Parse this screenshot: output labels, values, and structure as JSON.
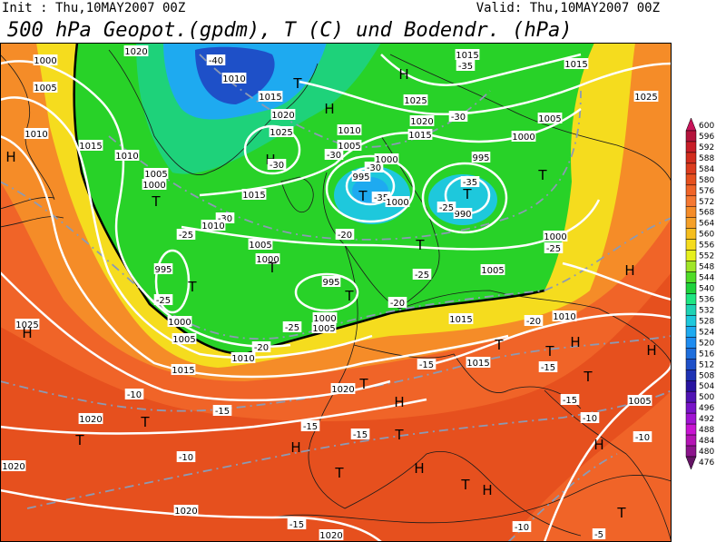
{
  "header": {
    "init": "Init : Thu,10MAY2007 00Z",
    "valid": "Valid: Thu,10MAY2007 00Z",
    "title": "500 hPa Geopot.(gpdm), T (C) und Bodendr. (hPa)"
  },
  "colorbar": {
    "levels": [
      600,
      596,
      592,
      588,
      584,
      580,
      576,
      572,
      568,
      564,
      560,
      556,
      552,
      548,
      544,
      540,
      536,
      532,
      528,
      524,
      520,
      516,
      512,
      508,
      504,
      500,
      496,
      492,
      488,
      484,
      480,
      476
    ],
    "colors": [
      "#c8145a",
      "#b4143c",
      "#c81e28",
      "#d22d1e",
      "#dc3c1e",
      "#e6501e",
      "#f06428",
      "#f57832",
      "#f58c28",
      "#f5a028",
      "#f5be1e",
      "#f5dc1e",
      "#e6f01e",
      "#a0e628",
      "#50dc28",
      "#1ed23c",
      "#1ee682",
      "#1ed2b4",
      "#1ec8dc",
      "#1eaaf0",
      "#1e8cf0",
      "#1e6edc",
      "#1e50c8",
      "#1e32b4",
      "#2814a0",
      "#5014b4",
      "#7814c8",
      "#a014d2",
      "#c814d2",
      "#b414b4",
      "#8c148c",
      "#641464"
    ]
  },
  "map_labels": [
    "1000",
    "1005",
    "1010",
    "1015",
    "H",
    "1020",
    "-40",
    "1010",
    "T",
    "1015",
    "1020",
    "1025",
    "H",
    "-30",
    "1010",
    "1005",
    "1000",
    "T",
    "1015",
    "-30",
    "1010",
    "-25",
    "995",
    "T",
    "-25",
    "1000",
    "1005",
    "1025",
    "H",
    "1005",
    "1000",
    "T",
    "995",
    "T",
    "-25",
    "1000",
    "1005",
    "-20",
    "1010",
    "1015",
    "995",
    "T",
    "-35",
    "1000",
    "-30",
    "1000",
    "1005",
    "1010",
    "-30",
    "T",
    "-35",
    "990",
    "-25",
    "995",
    "1000",
    "1005",
    "T",
    "-30",
    "1015",
    "1020",
    "1025",
    "H",
    "1015",
    "-35",
    "1015",
    "1025",
    "H",
    "-20",
    "1000",
    "-25",
    "1005",
    "-25",
    "T",
    "H",
    "1015",
    "-20",
    "1010",
    "-20",
    "-10",
    "1020",
    "T",
    "T",
    "-15",
    "1020",
    "T",
    "H",
    "-15",
    "1015",
    "T",
    "T",
    "-15",
    "H",
    "T",
    "H",
    "-15",
    "1005",
    "-10",
    "-10",
    "T",
    "-15",
    "-15",
    "H",
    "T",
    "H",
    "T",
    "H",
    "-10",
    "1020",
    "1020",
    "-15",
    "1020",
    "-10",
    "-5",
    "T",
    "H"
  ]
}
